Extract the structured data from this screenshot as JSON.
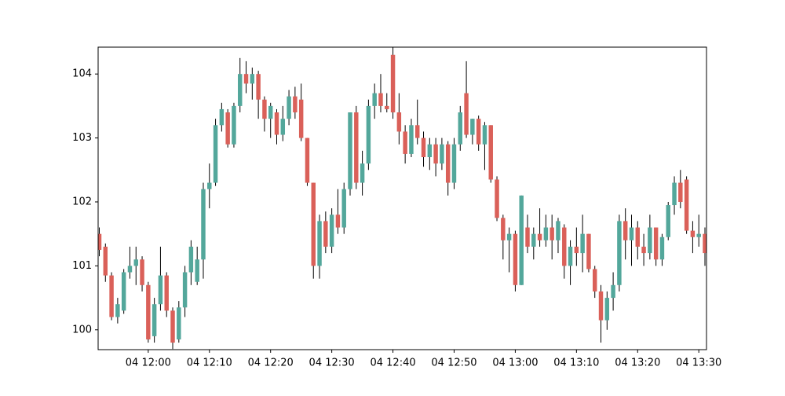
{
  "chart_data": {
    "type": "candlestick",
    "x": [
      "04 11:52",
      "04 11:53",
      "04 11:54",
      "04 11:55",
      "04 11:56",
      "04 11:57",
      "04 11:58",
      "04 11:59",
      "04 12:00",
      "04 12:01",
      "04 12:02",
      "04 12:03",
      "04 12:04",
      "04 12:05",
      "04 12:06",
      "04 12:07",
      "04 12:08",
      "04 12:09",
      "04 12:10",
      "04 12:11",
      "04 12:12",
      "04 12:13",
      "04 12:14",
      "04 12:15",
      "04 12:16",
      "04 12:17",
      "04 12:18",
      "04 12:19",
      "04 12:20",
      "04 12:21",
      "04 12:22",
      "04 12:23",
      "04 12:24",
      "04 12:25",
      "04 12:26",
      "04 12:27",
      "04 12:28",
      "04 12:29",
      "04 12:30",
      "04 12:31",
      "04 12:32",
      "04 12:33",
      "04 12:34",
      "04 12:35",
      "04 12:36",
      "04 12:37",
      "04 12:38",
      "04 12:39",
      "04 12:40",
      "04 12:41",
      "04 12:42",
      "04 12:43",
      "04 12:44",
      "04 12:45",
      "04 12:46",
      "04 12:47",
      "04 12:48",
      "04 12:49",
      "04 12:50",
      "04 12:51",
      "04 12:52",
      "04 12:53",
      "04 12:54",
      "04 12:55",
      "04 12:56",
      "04 12:57",
      "04 12:58",
      "04 12:59",
      "04 13:00",
      "04 13:01",
      "04 13:02",
      "04 13:03",
      "04 13:04",
      "04 13:05",
      "04 13:06",
      "04 13:07",
      "04 13:08",
      "04 13:09",
      "04 13:10",
      "04 13:11",
      "04 13:12",
      "04 13:13",
      "04 13:14",
      "04 13:15",
      "04 13:16",
      "04 13:17",
      "04 13:18",
      "04 13:19",
      "04 13:20",
      "04 13:21",
      "04 13:22",
      "04 13:23",
      "04 13:24",
      "04 13:25",
      "04 13:26",
      "04 13:27",
      "04 13:28",
      "04 13:29",
      "04 13:30",
      "04 13:31"
    ],
    "open": [
      101.5,
      101.3,
      100.85,
      100.2,
      100.3,
      100.9,
      101.0,
      101.1,
      100.7,
      99.9,
      100.4,
      100.85,
      100.3,
      99.85,
      100.35,
      100.9,
      100.75,
      101.1,
      102.2,
      102.3,
      103.2,
      103.4,
      102.9,
      103.5,
      104.0,
      103.85,
      104.0,
      103.6,
      103.3,
      103.4,
      103.05,
      103.3,
      103.65,
      103.6,
      103.0,
      102.3,
      101.0,
      101.7,
      101.3,
      101.8,
      101.6,
      102.2,
      103.4,
      102.3,
      102.6,
      103.5,
      103.7,
      103.5,
      104.3,
      103.4,
      103.1,
      102.75,
      103.2,
      103.0,
      102.7,
      102.9,
      102.6,
      102.9,
      102.3,
      102.9,
      103.7,
      103.05,
      103.3,
      102.9,
      103.2,
      102.35,
      101.75,
      101.4,
      101.5,
      100.7,
      101.6,
      101.3,
      101.5,
      101.4,
      101.6,
      101.4,
      101.6,
      101.0,
      101.3,
      101.2,
      101.5,
      100.95,
      100.6,
      100.15,
      100.5,
      100.7,
      101.7,
      101.4,
      101.6,
      101.3,
      101.2,
      101.6,
      101.1,
      101.45,
      101.95,
      102.3,
      102.35,
      101.55,
      101.45,
      101.5
    ],
    "high": [
      101.6,
      101.35,
      100.9,
      100.5,
      100.95,
      101.3,
      101.3,
      101.15,
      100.75,
      100.5,
      101.3,
      100.9,
      100.35,
      100.45,
      101.0,
      101.4,
      101.3,
      102.3,
      102.6,
      103.3,
      103.55,
      103.45,
      103.55,
      104.25,
      104.2,
      104.1,
      104.05,
      103.65,
      103.55,
      103.45,
      103.5,
      103.75,
      103.8,
      103.85,
      103.0,
      102.3,
      101.8,
      101.85,
      101.9,
      102.2,
      102.3,
      103.4,
      103.5,
      102.8,
      103.6,
      103.85,
      104.0,
      103.7,
      104.42,
      103.7,
      103.2,
      103.3,
      103.6,
      103.1,
      103.0,
      103.0,
      103.0,
      102.95,
      103.0,
      103.5,
      104.2,
      103.3,
      103.35,
      103.25,
      103.2,
      102.4,
      101.8,
      101.6,
      101.55,
      102.1,
      101.8,
      101.6,
      101.9,
      101.8,
      101.8,
      101.75,
      101.65,
      101.4,
      101.6,
      101.8,
      101.5,
      101.0,
      100.7,
      100.6,
      100.9,
      101.8,
      101.9,
      101.8,
      101.7,
      101.5,
      101.8,
      101.6,
      101.5,
      102.0,
      102.4,
      102.5,
      102.4,
      101.7,
      101.8,
      101.6
    ],
    "low": [
      101.15,
      100.75,
      100.15,
      100.1,
      100.25,
      100.8,
      100.7,
      100.6,
      99.8,
      99.8,
      100.3,
      100.2,
      99.7,
      99.8,
      100.2,
      100.7,
      100.7,
      100.8,
      101.9,
      102.25,
      103.1,
      102.85,
      102.85,
      103.4,
      103.7,
      103.6,
      103.3,
      103.1,
      103.0,
      102.9,
      102.95,
      103.2,
      103.3,
      102.95,
      102.25,
      100.8,
      100.8,
      101.2,
      101.2,
      101.5,
      101.5,
      102.1,
      102.2,
      102.1,
      102.5,
      103.3,
      103.4,
      103.4,
      103.3,
      102.9,
      102.6,
      102.7,
      102.9,
      102.55,
      102.5,
      102.4,
      102.5,
      102.1,
      102.2,
      102.8,
      103.0,
      102.9,
      102.8,
      102.5,
      102.3,
      101.7,
      101.1,
      100.9,
      100.6,
      100.7,
      101.2,
      101.1,
      101.3,
      101.3,
      101.1,
      101.2,
      100.8,
      100.7,
      101.0,
      100.9,
      100.9,
      100.5,
      99.8,
      100.0,
      100.3,
      100.6,
      101.1,
      101.0,
      101.1,
      101.0,
      101.1,
      101.0,
      101.0,
      101.4,
      101.8,
      101.9,
      101.5,
      101.2,
      101.3,
      101.0
    ],
    "close": [
      101.25,
      100.85,
      100.2,
      100.4,
      100.9,
      101.0,
      101.1,
      100.7,
      99.85,
      100.4,
      100.85,
      100.3,
      99.8,
      100.35,
      100.9,
      101.3,
      101.1,
      102.2,
      102.3,
      103.2,
      103.45,
      102.9,
      103.5,
      104.0,
      103.85,
      104.0,
      103.6,
      103.3,
      103.5,
      103.05,
      103.3,
      103.65,
      103.4,
      103.0,
      102.3,
      101.0,
      101.7,
      101.3,
      101.8,
      101.6,
      102.2,
      103.4,
      102.3,
      102.6,
      103.5,
      103.7,
      103.5,
      103.45,
      103.4,
      103.1,
      102.75,
      103.2,
      103.0,
      102.7,
      102.9,
      102.6,
      102.9,
      102.3,
      102.9,
      103.4,
      103.05,
      103.3,
      102.9,
      103.2,
      102.35,
      101.75,
      101.4,
      101.5,
      100.7,
      102.1,
      101.3,
      101.5,
      101.4,
      101.6,
      101.4,
      101.7,
      101.0,
      101.3,
      101.2,
      101.5,
      100.95,
      100.6,
      100.15,
      100.5,
      100.7,
      101.7,
      101.4,
      101.6,
      101.3,
      101.2,
      101.6,
      101.1,
      101.45,
      101.95,
      102.3,
      102.0,
      101.55,
      101.45,
      101.5,
      101.2
    ],
    "up_color": "#53a79b",
    "down_color": "#da6059",
    "wick_color": "#000000",
    "xlim": [
      "04 11:52",
      "04 13:31"
    ],
    "xticks": [
      "04 12:00",
      "04 12:10",
      "04 12:20",
      "04 12:30",
      "04 12:40",
      "04 12:50",
      "04 13:00",
      "04 13:10",
      "04 13:20",
      "04 13:30"
    ],
    "ylim": [
      99.69,
      104.42
    ],
    "yticks": [
      100,
      101,
      102,
      103,
      104
    ]
  }
}
